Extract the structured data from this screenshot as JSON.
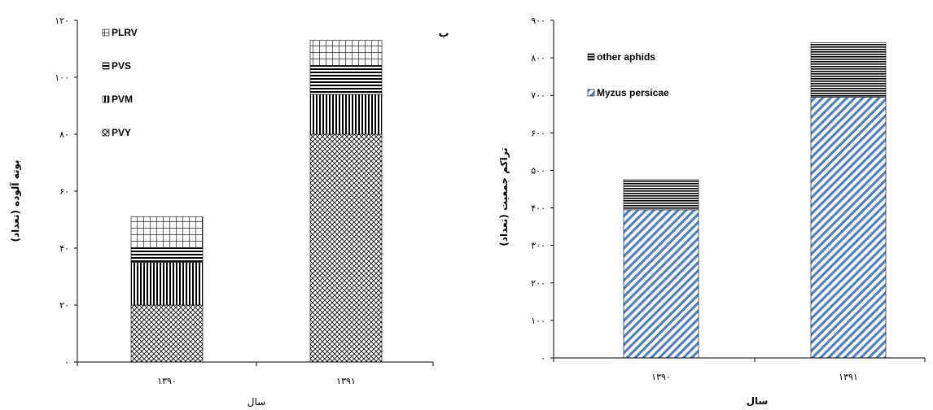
{
  "chart_data": [
    {
      "type": "bar",
      "stacked": true,
      "panel_label": "ب",
      "ylabel": "بوته آلوده (تعداد)",
      "xlabel": "سال",
      "ylim": [
        0,
        120
      ],
      "y_ticks": [
        "۰",
        "۲۰",
        "۴۰",
        "۶۰",
        "۸۰",
        "۱۰۰",
        "۱۲۰"
      ],
      "categories": [
        "۱۳۹۰",
        "۱۳۹۱"
      ],
      "legend_position": "top-left",
      "series": [
        {
          "name": "PVY",
          "values": [
            20,
            80
          ],
          "pattern": "crosshatch-diag"
        },
        {
          "name": "PVM",
          "values": [
            15,
            14
          ],
          "pattern": "vertical"
        },
        {
          "name": "PVS",
          "values": [
            5,
            10
          ],
          "pattern": "horizontal"
        },
        {
          "name": "PLRV",
          "values": [
            11,
            9
          ],
          "pattern": "grid"
        }
      ]
    },
    {
      "type": "bar",
      "stacked": true,
      "ylabel": "تراکم جمعیت (تعداد)",
      "xlabel": "سال",
      "ylim": [
        0,
        900
      ],
      "y_ticks": [
        "۰",
        "۱۰۰",
        "۲۰۰",
        "۳۰۰",
        "۴۰۰",
        "۵۰۰",
        "۶۰۰",
        "۷۰۰",
        "۸۰۰",
        "۹۰۰"
      ],
      "categories": [
        "۱۳۹۰",
        "۱۳۹۱"
      ],
      "legend_position": "top-left",
      "series": [
        {
          "name": "Myzus persicae",
          "values": [
            395,
            695
          ],
          "pattern": "diagonal-blue",
          "color": "#4f81bd"
        },
        {
          "name": "other aphids",
          "values": [
            80,
            145
          ],
          "pattern": "horizontal-dense"
        }
      ]
    }
  ]
}
